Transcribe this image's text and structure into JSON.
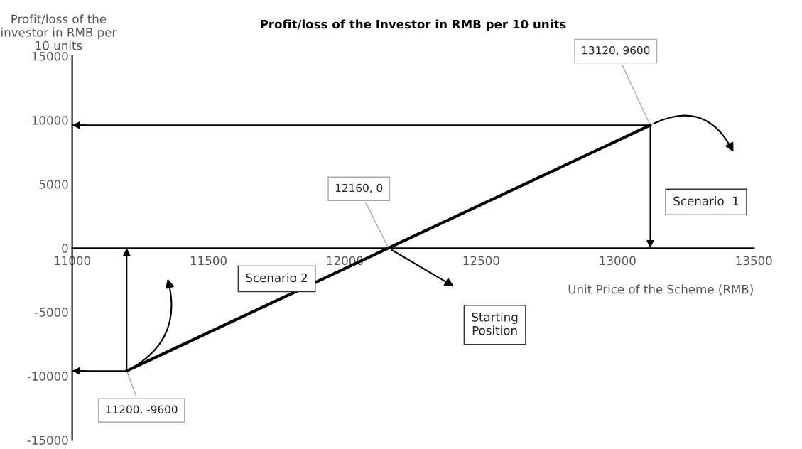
{
  "chart_data": {
    "type": "line",
    "title": "Profit/loss of the Investor in RMB per 10 units",
    "xlabel": "Unit Price of the Scheme (RMB)",
    "ylabel": "Profit/loss of the\ninvestor in RMB per\n10 units",
    "x": [
      11200,
      12160,
      13120
    ],
    "series": [
      {
        "color": "#000000",
        "values": [
          -9600,
          0,
          9600
        ]
      },
      {
        "type": "line",
        "color": "#000000",
        "x": [
          11000,
          13120
        ],
        "values": [
          9600,
          9600
        ]
      },
      {
        "type": "line",
        "color": "#000000",
        "x": [
          11000,
          11200
        ],
        "values": [
          -9600,
          -9600
        ]
      }
    ],
    "xlim": [
      11000,
      13500
    ],
    "xticks": [
      11000,
      11500,
      12000,
      12500,
      13000,
      13500
    ],
    "ylim": [
      -15000,
      15000
    ],
    "yticks": [
      -15000,
      -10000,
      -5000,
      0,
      5000,
      10000,
      15000
    ],
    "grid": false,
    "marker": "none",
    "line_style": "solid",
    "annotations": [
      {
        "text": "13120, 9600",
        "x": 13120,
        "y": 9600
      },
      {
        "text": "12160, 0",
        "x": 12160,
        "y": 0
      },
      {
        "text": "11200, -9600",
        "x": 11200,
        "y": -9600
      },
      "Scenario  1",
      "Starting\nPosition",
      "Scenario 2"
    ]
  }
}
